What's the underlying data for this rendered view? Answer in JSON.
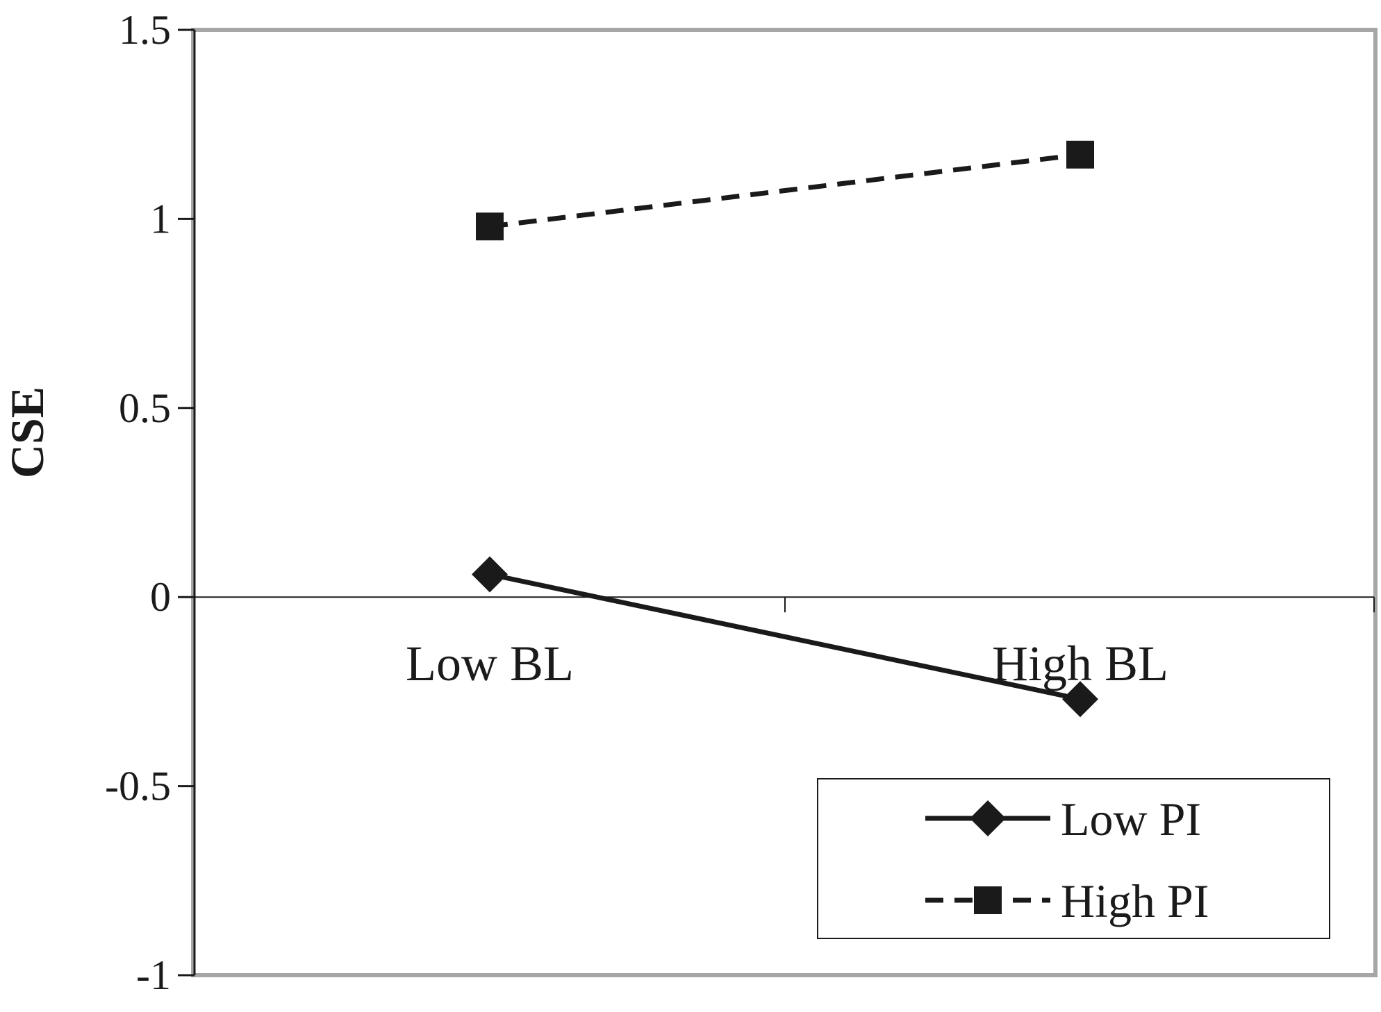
{
  "chart_data": {
    "type": "line",
    "categories": [
      "Low BL",
      "High BL"
    ],
    "series": [
      {
        "name": "Low PI",
        "values": [
          0.06,
          -0.27
        ],
        "line_style": "solid",
        "marker": "diamond"
      },
      {
        "name": "High PI",
        "values": [
          0.98,
          1.17
        ],
        "line_style": "dashed",
        "marker": "square"
      }
    ],
    "ylabel": "CSE",
    "xlabel": "",
    "ylim": [
      -1,
      1.5
    ],
    "yticks": [
      -1,
      -0.5,
      0,
      0.5,
      1,
      1.5
    ],
    "ytick_labels": [
      "-1",
      "-0.5",
      "0",
      "0.5",
      "1",
      "1.5"
    ],
    "grid": false,
    "legend_position": "bottom-right",
    "colors": {
      "series": "#1a1a1a",
      "axis": "#1a1a1a",
      "frame": "#a6a6a6"
    }
  }
}
